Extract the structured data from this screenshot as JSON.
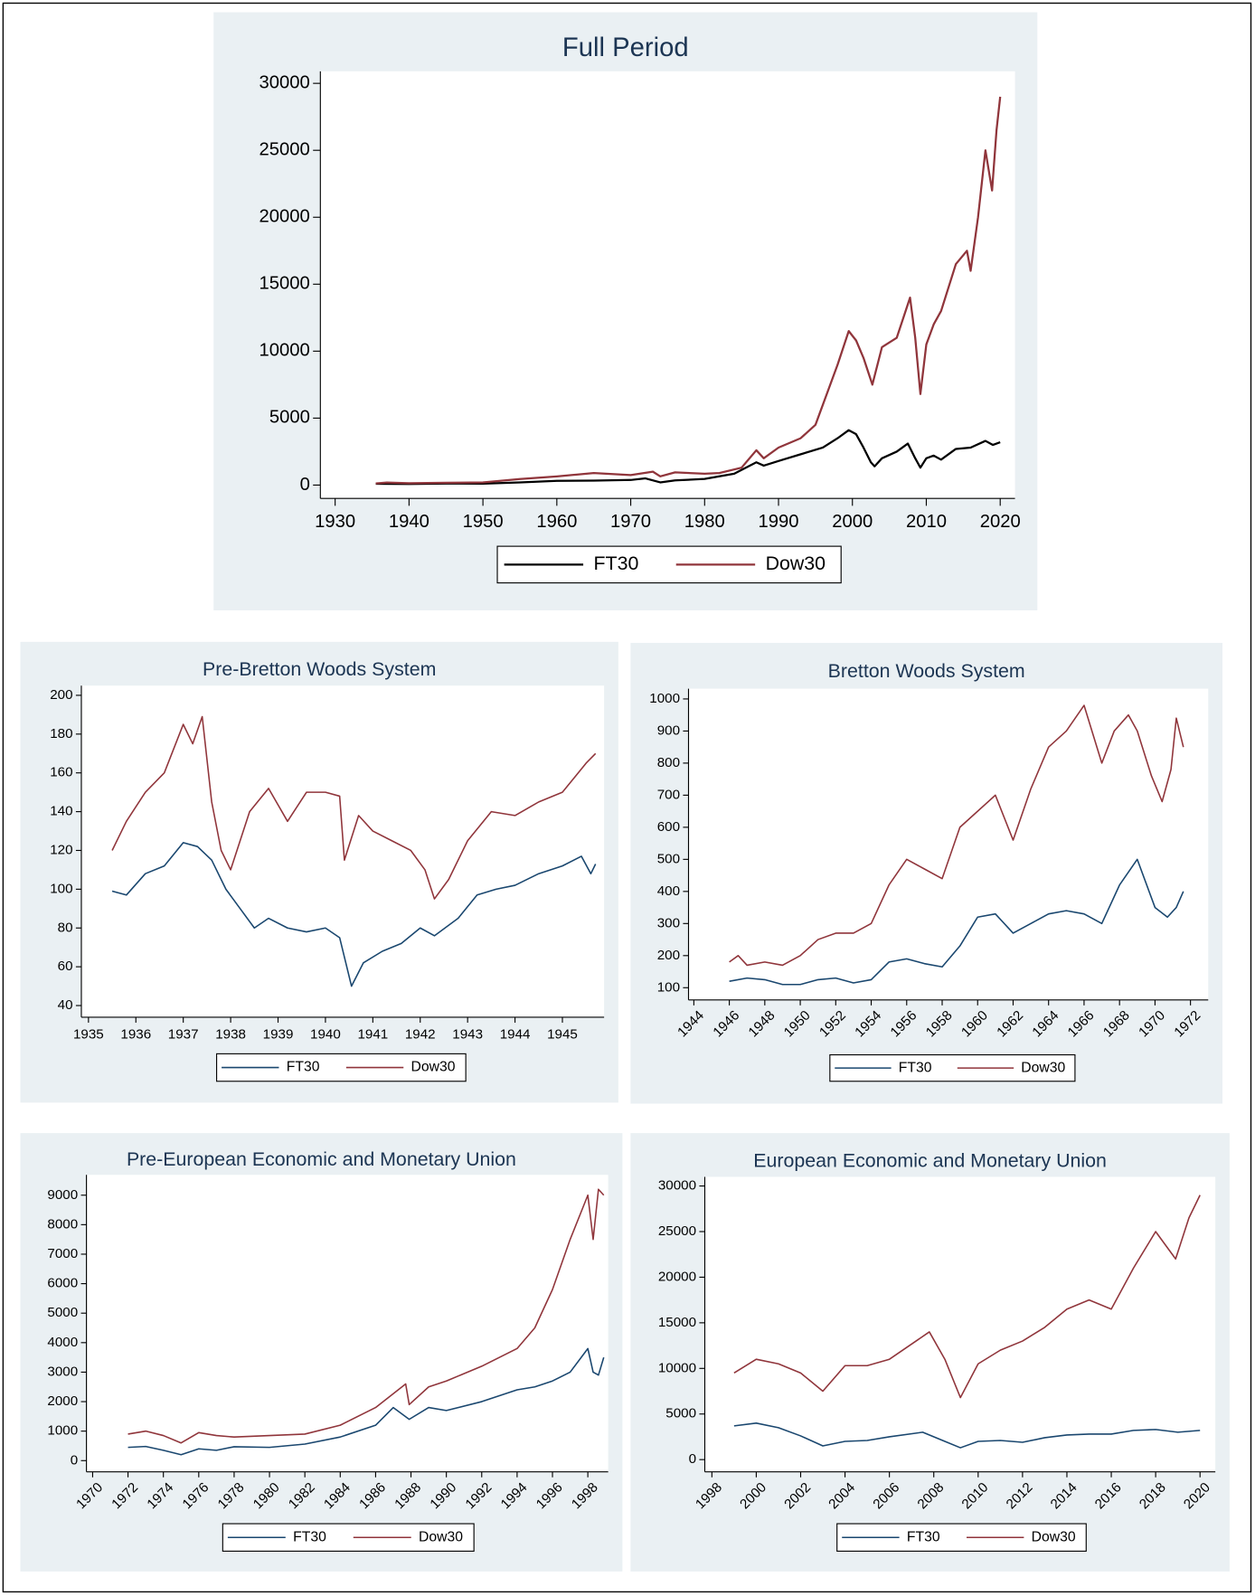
{
  "chart_data": [
    {
      "type": "line",
      "title": "Full Period",
      "series": [
        {
          "name": "FT30",
          "color": "#000000",
          "x": [
            1935.5,
            1940,
            1945,
            1950,
            1955,
            1960,
            1965,
            1970,
            1972,
            1974,
            1976,
            1980,
            1984,
            1987,
            1988,
            1990,
            1993,
            1996,
            1998,
            1999.5,
            2000.5,
            2001.5,
            2002.5,
            2003,
            2004,
            2006,
            2007.5,
            2008.5,
            2009.2,
            2010,
            2011,
            2012,
            2014,
            2016,
            2018,
            2019,
            2020
          ],
          "values": [
            100,
            80,
            115,
            110,
            200,
            320,
            330,
            380,
            500,
            200,
            350,
            460,
            850,
            1700,
            1450,
            1800,
            2300,
            2800,
            3500,
            4100,
            3800,
            2800,
            1700,
            1400,
            2000,
            2500,
            3100,
            2000,
            1300,
            2000,
            2200,
            1900,
            2700,
            2800,
            3300,
            3000,
            3200
          ]
        },
        {
          "name": "Dow30",
          "color": "#90353b",
          "x": [
            1935.5,
            1937,
            1940,
            1945,
            1950,
            1955,
            1960,
            1965,
            1970,
            1973,
            1974,
            1976,
            1980,
            1982,
            1985,
            1987,
            1988,
            1990,
            1993,
            1995,
            1997,
            1998,
            1999.5,
            2000.5,
            2001.5,
            2002.7,
            2004,
            2006,
            2007.8,
            2008.5,
            2009.2,
            2010,
            2011,
            2012,
            2014,
            2015.5,
            2016,
            2017,
            2018,
            2018.9,
            2019.5,
            2020
          ],
          "values": [
            120,
            190,
            140,
            170,
            200,
            450,
            650,
            900,
            750,
            1000,
            650,
            950,
            850,
            900,
            1300,
            2600,
            2000,
            2800,
            3500,
            4500,
            7500,
            9000,
            11500,
            10800,
            9500,
            7500,
            10300,
            11000,
            14000,
            11000,
            6800,
            10500,
            12000,
            13000,
            16500,
            17500,
            16000,
            20000,
            25000,
            22000,
            26500,
            29000
          ]
        }
      ],
      "xlim": [
        1928,
        2022
      ],
      "xticks": [
        1930,
        1940,
        1950,
        1960,
        1970,
        1980,
        1990,
        2000,
        2010,
        2020
      ],
      "ylim": [
        -1000,
        30900
      ],
      "yticks": [
        0,
        5000,
        10000,
        15000,
        20000,
        25000,
        30000
      ]
    },
    {
      "type": "line",
      "title": "Pre-Bretton Woods System",
      "series": [
        {
          "name": "FT30",
          "color": "#1a476f",
          "x": [
            1935.5,
            1935.8,
            1936.2,
            1936.6,
            1937.0,
            1937.3,
            1937.6,
            1937.9,
            1938.2,
            1938.5,
            1938.8,
            1939.2,
            1939.6,
            1940.0,
            1940.3,
            1940.5,
            1940.55,
            1940.8,
            1941.2,
            1941.6,
            1942.0,
            1942.3,
            1942.8,
            1943.2,
            1943.6,
            1944.0,
            1944.5,
            1945.0,
            1945.4,
            1945.6,
            1945.7
          ],
          "values": [
            99,
            97,
            108,
            112,
            124,
            122,
            115,
            100,
            90,
            80,
            85,
            80,
            78,
            80,
            75,
            55,
            50,
            62,
            68,
            72,
            80,
            76,
            85,
            97,
            100,
            102,
            108,
            112,
            117,
            108,
            113
          ]
        },
        {
          "name": "Dow30",
          "color": "#90353b",
          "x": [
            1935.5,
            1935.8,
            1936.2,
            1936.6,
            1937.0,
            1937.2,
            1937.4,
            1937.6,
            1937.8,
            1938.0,
            1938.2,
            1938.4,
            1938.8,
            1939.2,
            1939.6,
            1940.0,
            1940.3,
            1940.4,
            1940.7,
            1941.0,
            1941.4,
            1941.8,
            1942.1,
            1942.3,
            1942.6,
            1943.0,
            1943.5,
            1944.0,
            1944.5,
            1945.0,
            1945.5,
            1945.7
          ],
          "values": [
            120,
            135,
            150,
            160,
            185,
            175,
            189,
            145,
            120,
            110,
            125,
            140,
            152,
            135,
            150,
            150,
            148,
            115,
            138,
            130,
            125,
            120,
            110,
            95,
            105,
            125,
            140,
            138,
            145,
            150,
            165,
            170
          ]
        }
      ],
      "xlim": [
        1934.85,
        1945.88
      ],
      "xticks": [
        1935,
        1936,
        1937,
        1938,
        1939,
        1940,
        1941,
        1942,
        1943,
        1944,
        1945
      ],
      "ylim": [
        34,
        205
      ],
      "yticks": [
        40,
        60,
        80,
        100,
        120,
        140,
        160,
        180,
        200
      ]
    },
    {
      "type": "line",
      "title": "Bretton Woods System",
      "series": [
        {
          "name": "FT30",
          "color": "#1a476f",
          "x": [
            1946,
            1947,
            1948,
            1949,
            1950,
            1951,
            1952,
            1953,
            1954,
            1955,
            1956,
            1957,
            1958,
            1959,
            1960,
            1961,
            1962,
            1963,
            1964,
            1965,
            1966,
            1967,
            1968,
            1969,
            1970,
            1970.7,
            1971.2,
            1971.6
          ],
          "values": [
            120,
            130,
            125,
            110,
            110,
            125,
            130,
            115,
            125,
            180,
            190,
            175,
            165,
            230,
            320,
            330,
            270,
            300,
            330,
            340,
            330,
            300,
            420,
            500,
            350,
            320,
            350,
            400
          ]
        },
        {
          "name": "Dow30",
          "color": "#90353b",
          "x": [
            1946,
            1946.5,
            1947,
            1948,
            1949,
            1950,
            1951,
            1952,
            1953,
            1954,
            1955,
            1956,
            1957,
            1958,
            1959,
            1960,
            1961,
            1962,
            1963,
            1964,
            1965,
            1966,
            1967,
            1967.7,
            1968.5,
            1969,
            1969.8,
            1970.4,
            1970.9,
            1971.2,
            1971.6
          ],
          "values": [
            180,
            200,
            170,
            180,
            170,
            200,
            250,
            270,
            270,
            300,
            420,
            500,
            470,
            440,
            600,
            650,
            700,
            560,
            720,
            850,
            900,
            980,
            800,
            900,
            950,
            900,
            760,
            680,
            780,
            940,
            850
          ]
        }
      ],
      "xlim": [
        1943.7,
        1973
      ],
      "xticks": [
        1944,
        1946,
        1948,
        1950,
        1952,
        1954,
        1956,
        1958,
        1960,
        1962,
        1964,
        1966,
        1968,
        1970,
        1972
      ],
      "ylim": [
        62,
        1032
      ],
      "yticks": [
        100,
        200,
        300,
        400,
        500,
        600,
        700,
        800,
        900,
        1000
      ]
    },
    {
      "type": "line",
      "title": "Pre-European Economic and Monetary Union",
      "series": [
        {
          "name": "FT30",
          "color": "#1a476f",
          "x": [
            1972,
            1973,
            1974,
            1975,
            1976,
            1977,
            1978,
            1980,
            1982,
            1984,
            1986,
            1987,
            1987.9,
            1989,
            1990,
            1992,
            1994,
            1995,
            1996,
            1997,
            1998,
            1998.3,
            1998.6,
            1998.9
          ],
          "values": [
            450,
            480,
            350,
            200,
            400,
            350,
            470,
            450,
            560,
            800,
            1200,
            1800,
            1400,
            1800,
            1700,
            2000,
            2400,
            2500,
            2700,
            3000,
            3800,
            3000,
            2900,
            3500
          ]
        },
        {
          "name": "Dow30",
          "color": "#90353b",
          "x": [
            1972,
            1973,
            1974,
            1975,
            1976,
            1977,
            1978,
            1980,
            1982,
            1984,
            1986,
            1987.7,
            1987.9,
            1989,
            1990,
            1992,
            1994,
            1995,
            1996,
            1997,
            1998,
            1998.3,
            1998.6,
            1998.9
          ],
          "values": [
            900,
            1000,
            850,
            600,
            950,
            850,
            800,
            850,
            900,
            1200,
            1800,
            2600,
            1900,
            2500,
            2700,
            3200,
            3800,
            4500,
            5800,
            7500,
            9000,
            7500,
            9200,
            9000
          ]
        }
      ],
      "xlim": [
        1969.65,
        1999.15
      ],
      "xticks": [
        1970,
        1972,
        1974,
        1976,
        1978,
        1980,
        1982,
        1984,
        1986,
        1988,
        1990,
        1992,
        1994,
        1996,
        1998
      ],
      "ylim": [
        -380,
        9690
      ],
      "yticks": [
        0,
        1000,
        2000,
        3000,
        4000,
        5000,
        6000,
        7000,
        8000,
        9000
      ]
    },
    {
      "type": "line",
      "title": "European Economic and Monetary Union",
      "series": [
        {
          "name": "FT30",
          "color": "#1a476f",
          "x": [
            1999,
            2000,
            2001,
            2002,
            2003,
            2004,
            2005,
            2006,
            2007.5,
            2008.5,
            2009.2,
            2010,
            2011,
            2012,
            2013,
            2014,
            2015,
            2016,
            2017,
            2018,
            2019,
            2020
          ],
          "values": [
            3700,
            4000,
            3500,
            2600,
            1500,
            2000,
            2100,
            2500,
            3000,
            2000,
            1300,
            2000,
            2100,
            1900,
            2400,
            2700,
            2800,
            2800,
            3200,
            3300,
            3000,
            3200
          ]
        },
        {
          "name": "Dow30",
          "color": "#90353b",
          "x": [
            1999,
            2000,
            2001,
            2002,
            2003,
            2004,
            2005,
            2006,
            2007.8,
            2008.5,
            2009.2,
            2010,
            2011,
            2012,
            2013,
            2014,
            2015,
            2016,
            2017,
            2018,
            2018.9,
            2019.5,
            2020
          ],
          "values": [
            9500,
            11000,
            10500,
            9500,
            7500,
            10300,
            10300,
            11000,
            14000,
            11000,
            6800,
            10500,
            12000,
            13000,
            14500,
            16500,
            17500,
            16500,
            21000,
            25000,
            22000,
            26500,
            29000
          ]
        }
      ],
      "xlim": [
        1997.68,
        2020.69
      ],
      "xticks": [
        1998,
        2000,
        2002,
        2004,
        2006,
        2008,
        2010,
        2012,
        2014,
        2016,
        2018,
        2020
      ],
      "ylim": [
        -1340,
        31000
      ],
      "yticks": [
        0,
        5000,
        10000,
        15000,
        20000,
        25000,
        30000
      ]
    }
  ]
}
